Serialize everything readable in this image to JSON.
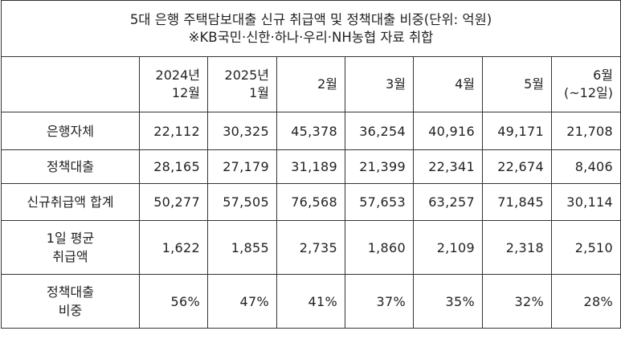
{
  "title": {
    "line1": "5대 은행 주택담보대출 신규 취급액 및 정책대출 비중(단위: 억원)",
    "line2": "※KB국민·신한·하나·우리·NH농협 자료 취합"
  },
  "columns": [
    {
      "line1": "2024년",
      "line2": "12월"
    },
    {
      "line1": "2025년",
      "line2": "1월"
    },
    {
      "line1": "2월",
      "line2": ""
    },
    {
      "line1": "3월",
      "line2": ""
    },
    {
      "line1": "4월",
      "line2": ""
    },
    {
      "line1": "5월",
      "line2": ""
    },
    {
      "line1": "6월",
      "line2": "(~12일)"
    }
  ],
  "rows": [
    {
      "label1": "은행자체",
      "label2": "",
      "values": [
        "22,112",
        "30,325",
        "45,378",
        "36,254",
        "40,916",
        "49,171",
        "21,708"
      ]
    },
    {
      "label1": "정책대출",
      "label2": "",
      "values": [
        "28,165",
        "27,179",
        "31,189",
        "21,399",
        "22,341",
        "22,674",
        "8,406"
      ]
    },
    {
      "label1": "신규취급액 합계",
      "label2": "",
      "values": [
        "50,277",
        "57,505",
        "76,568",
        "57,653",
        "63,257",
        "71,845",
        "30,114"
      ]
    },
    {
      "label1": "1일 평균",
      "label2": "취급액",
      "values": [
        "1,622",
        "1,855",
        "2,735",
        "1,860",
        "2,109",
        "2,318",
        "2,510"
      ]
    },
    {
      "label1": "정책대출",
      "label2": "비중",
      "values": [
        "56%",
        "47%",
        "41%",
        "37%",
        "35%",
        "32%",
        "28%"
      ]
    }
  ]
}
